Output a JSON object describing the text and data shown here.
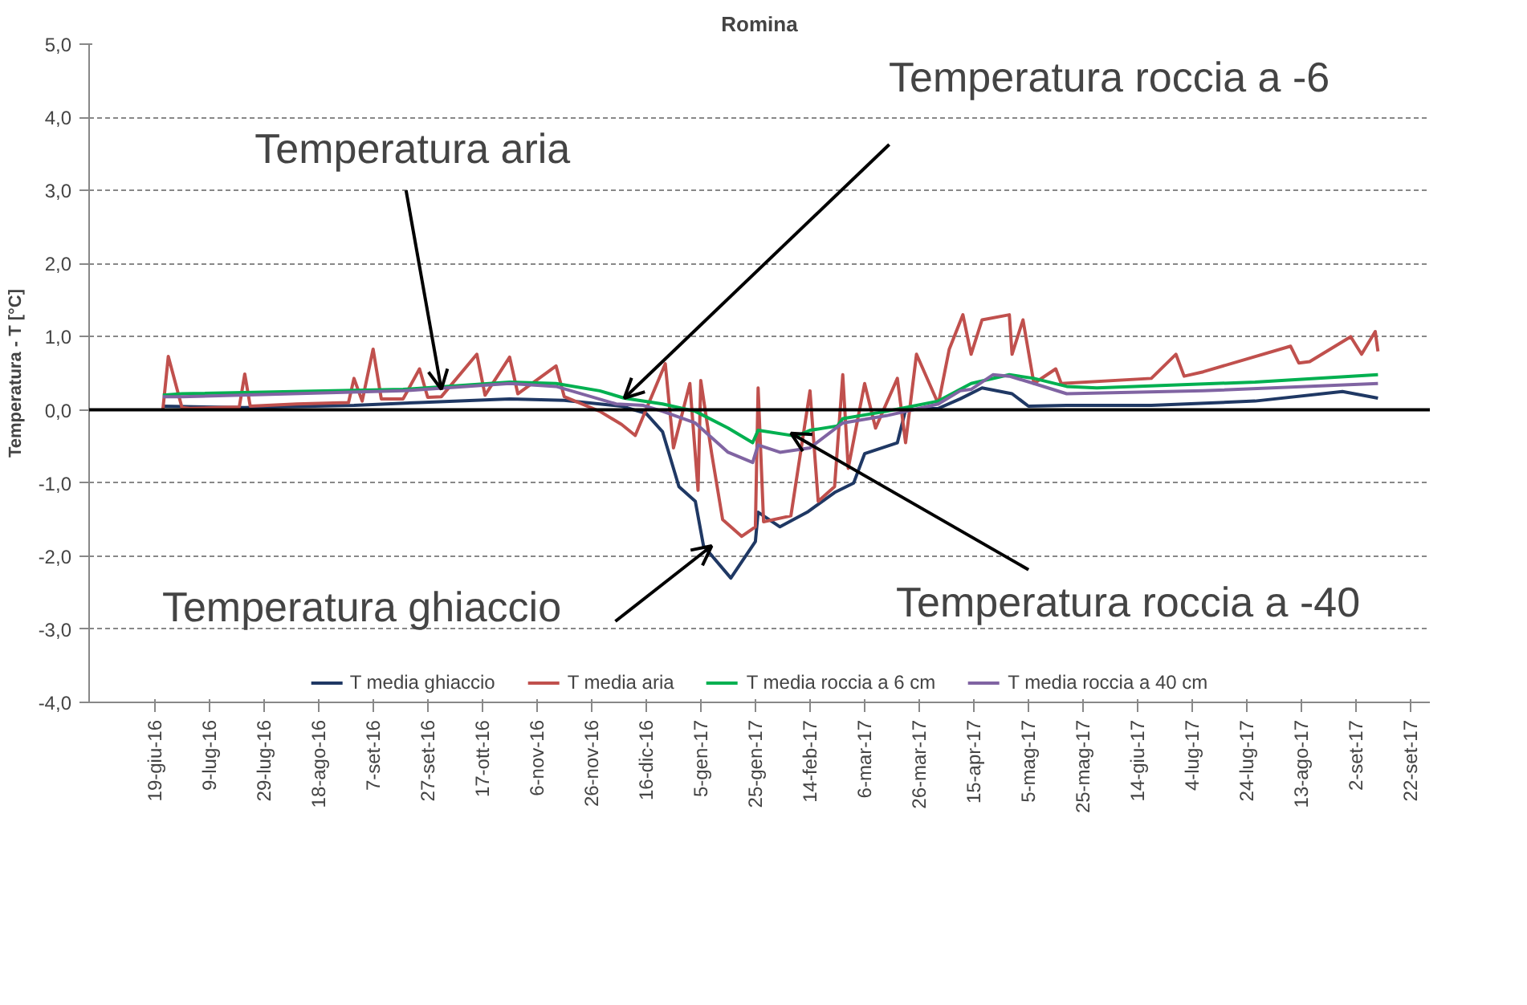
{
  "chart_data": {
    "type": "line",
    "title": "Romina",
    "ylabel": "Temperatura - T [°C]",
    "xlim": [
      "2016-05-26",
      "2017-09-29"
    ],
    "ylim": [
      -4,
      5
    ],
    "yticks": [
      {
        "value": -4,
        "label": "-4,0"
      },
      {
        "value": -3,
        "label": "-3,0"
      },
      {
        "value": -2,
        "label": "-2,0"
      },
      {
        "value": -1,
        "label": "-1,0"
      },
      {
        "value": 0,
        "label": "0,0"
      },
      {
        "value": 1,
        "label": "1,0"
      },
      {
        "value": 2,
        "label": "2,0"
      },
      {
        "value": 3,
        "label": "3,0"
      },
      {
        "value": 4,
        "label": "4,0"
      },
      {
        "value": 5,
        "label": "5,0"
      }
    ],
    "xticks": [
      {
        "value": "2016-06-19",
        "label": "19-giu-16"
      },
      {
        "value": "2016-07-09",
        "label": "9-lug-16"
      },
      {
        "value": "2016-07-29",
        "label": "29-lug-16"
      },
      {
        "value": "2016-08-18",
        "label": "18-ago-16"
      },
      {
        "value": "2016-09-07",
        "label": "7-set-16"
      },
      {
        "value": "2016-09-27",
        "label": "27-set-16"
      },
      {
        "value": "2016-10-17",
        "label": "17-ott-16"
      },
      {
        "value": "2016-11-06",
        "label": "6-nov-16"
      },
      {
        "value": "2016-11-26",
        "label": "26-nov-16"
      },
      {
        "value": "2016-12-16",
        "label": "16-dic-16"
      },
      {
        "value": "2017-01-05",
        "label": "5-gen-17"
      },
      {
        "value": "2017-01-25",
        "label": "25-gen-17"
      },
      {
        "value": "2017-02-14",
        "label": "14-feb-17"
      },
      {
        "value": "2017-03-06",
        "label": "6-mar-17"
      },
      {
        "value": "2017-03-26",
        "label": "26-mar-17"
      },
      {
        "value": "2017-04-15",
        "label": "15-apr-17"
      },
      {
        "value": "2017-05-05",
        "label": "5-mag-17"
      },
      {
        "value": "2017-05-25",
        "label": "25-mag-17"
      },
      {
        "value": "2017-06-14",
        "label": "14-giu-17"
      },
      {
        "value": "2017-07-04",
        "label": "4-lug-17"
      },
      {
        "value": "2017-07-24",
        "label": "24-lug-17"
      },
      {
        "value": "2017-08-13",
        "label": "13-ago-17"
      },
      {
        "value": "2017-09-02",
        "label": "2-set-17"
      },
      {
        "value": "2017-09-22",
        "label": "22-set-17"
      }
    ],
    "grid": "y",
    "legend": "bottom",
    "ref_lines": [
      {
        "axis": "y",
        "value": 0,
        "color": "#000000"
      }
    ],
    "annotations": [
      {
        "text": "Temperatura aria",
        "x": "2016-10-02",
        "y": 0.28
      },
      {
        "text": "Temperatura roccia a -6",
        "x": "2016-12-08",
        "y": 0.16
      },
      {
        "text": "Temperatura ghiaccio",
        "x": "2017-01-09",
        "y": -1.86
      },
      {
        "text": "Temperatura roccia a -40",
        "x": "2017-02-07",
        "y": -0.32
      }
    ],
    "series": [
      {
        "name": "T media ghiaccio",
        "color": "#1f3864",
        "x": [
          "2016-06-22",
          "2016-07-22",
          "2016-08-31",
          "2016-09-24",
          "2016-10-27",
          "2016-11-16",
          "2016-11-29",
          "2016-12-07",
          "2016-12-16",
          "2016-12-22",
          "2016-12-28",
          "2017-01-03",
          "2017-01-06",
          "2017-01-16",
          "2017-01-25",
          "2017-01-26",
          "2017-02-03",
          "2017-02-13",
          "2017-02-23",
          "2017-03-02",
          "2017-03-06",
          "2017-03-18",
          "2017-03-21",
          "2017-04-02",
          "2017-04-10",
          "2017-04-18",
          "2017-04-29",
          "2017-05-05",
          "2017-05-19",
          "2017-06-19",
          "2017-07-27",
          "2017-08-28",
          "2017-09-10"
        ],
        "values": [
          0.05,
          0.03,
          0.06,
          0.1,
          0.15,
          0.13,
          0.08,
          0.05,
          -0.05,
          -0.3,
          -1.05,
          -1.25,
          -1.86,
          -2.3,
          -1.8,
          -1.4,
          -1.6,
          -1.4,
          -1.13,
          -1.0,
          -0.6,
          -0.45,
          0.0,
          0.02,
          0.15,
          0.3,
          0.22,
          0.05,
          0.06,
          0.06,
          0.12,
          0.25,
          0.16
        ]
      },
      {
        "name": "T media aria",
        "color": "#c0504d",
        "x": [
          "2016-06-22",
          "2016-06-24",
          "2016-06-29",
          "2016-07-02",
          "2016-07-20",
          "2016-07-22",
          "2016-07-24",
          "2016-08-10",
          "2016-08-29",
          "2016-08-31",
          "2016-09-03",
          "2016-09-07",
          "2016-09-10",
          "2016-09-18",
          "2016-09-24",
          "2016-09-27",
          "2016-10-02",
          "2016-10-15",
          "2016-10-18",
          "2016-10-27",
          "2016-10-30",
          "2016-11-13",
          "2016-11-16",
          "2016-11-29",
          "2016-12-07",
          "2016-12-12",
          "2016-12-23",
          "2016-12-26",
          "2017-01-01",
          "2017-01-04",
          "2017-01-05",
          "2017-01-09",
          "2017-01-13",
          "2017-01-20",
          "2017-01-25",
          "2017-01-26",
          "2017-01-28",
          "2017-02-07",
          "2017-02-14",
          "2017-02-17",
          "2017-02-23",
          "2017-02-26",
          "2017-02-28",
          "2017-03-06",
          "2017-03-10",
          "2017-03-18",
          "2017-03-21",
          "2017-03-25",
          "2017-04-02",
          "2017-04-06",
          "2017-04-11",
          "2017-04-14",
          "2017-04-18",
          "2017-04-28",
          "2017-04-29",
          "2017-05-03",
          "2017-05-07",
          "2017-05-15",
          "2017-05-17",
          "2017-06-19",
          "2017-06-28",
          "2017-07-01",
          "2017-07-08",
          "2017-08-09",
          "2017-08-12",
          "2017-08-16",
          "2017-08-31",
          "2017-09-04",
          "2017-09-09",
          "2017-09-10"
        ],
        "values": [
          0.0,
          0.73,
          0.03,
          0.02,
          0.04,
          0.49,
          0.05,
          0.08,
          0.1,
          0.43,
          0.12,
          0.83,
          0.15,
          0.15,
          0.56,
          0.17,
          0.18,
          0.76,
          0.2,
          0.72,
          0.22,
          0.6,
          0.18,
          -0.02,
          -0.2,
          -0.35,
          0.63,
          -0.52,
          0.36,
          -1.1,
          0.4,
          -0.6,
          -1.5,
          -1.73,
          -1.6,
          0.3,
          -1.53,
          -1.45,
          0.26,
          -1.25,
          -1.05,
          0.48,
          -0.8,
          0.36,
          -0.25,
          0.43,
          -0.45,
          0.76,
          0.08,
          0.83,
          1.3,
          0.76,
          1.23,
          1.3,
          0.76,
          1.23,
          0.36,
          0.56,
          0.36,
          0.43,
          0.76,
          0.46,
          0.52,
          0.87,
          0.64,
          0.66,
          1.0,
          0.76,
          1.07,
          0.8
        ]
      },
      {
        "name": "T media roccia a 6 cm",
        "color": "#00b050",
        "x": [
          "2016-06-22",
          "2016-06-29",
          "2016-09-18",
          "2016-10-27",
          "2016-11-13",
          "2016-11-29",
          "2016-12-08",
          "2016-12-22",
          "2017-01-03",
          "2017-01-15",
          "2017-01-24",
          "2017-01-26",
          "2017-02-09",
          "2017-02-14",
          "2017-02-24",
          "2017-02-26",
          "2017-03-14",
          "2017-04-02",
          "2017-04-10",
          "2017-04-14",
          "2017-04-28",
          "2017-05-07",
          "2017-05-19",
          "2017-05-30",
          "2017-07-27",
          "2017-09-10"
        ],
        "values": [
          0.2,
          0.22,
          0.28,
          0.38,
          0.36,
          0.26,
          0.16,
          0.08,
          -0.02,
          -0.25,
          -0.45,
          -0.28,
          -0.36,
          -0.28,
          -0.22,
          -0.12,
          -0.02,
          0.12,
          0.28,
          0.36,
          0.48,
          0.43,
          0.32,
          0.3,
          0.38,
          0.48
        ]
      },
      {
        "name": "T media roccia a 40 cm",
        "color": "#8064a2",
        "x": [
          "2016-06-22",
          "2016-06-29",
          "2016-09-18",
          "2016-10-27",
          "2016-11-13",
          "2016-12-05",
          "2016-12-15",
          "2016-12-22",
          "2017-01-03",
          "2017-01-15",
          "2017-01-24",
          "2017-01-26",
          "2017-02-03",
          "2017-02-14",
          "2017-02-26",
          "2017-03-14",
          "2017-04-02",
          "2017-04-10",
          "2017-04-14",
          "2017-04-22",
          "2017-04-28",
          "2017-05-07",
          "2017-05-19",
          "2017-07-08",
          "2017-09-10"
        ],
        "values": [
          0.18,
          0.18,
          0.26,
          0.36,
          0.32,
          0.08,
          0.06,
          -0.02,
          -0.18,
          -0.58,
          -0.72,
          -0.48,
          -0.58,
          -0.52,
          -0.18,
          -0.08,
          0.08,
          0.26,
          0.28,
          0.48,
          0.46,
          0.36,
          0.22,
          0.26,
          0.36
        ]
      }
    ]
  }
}
